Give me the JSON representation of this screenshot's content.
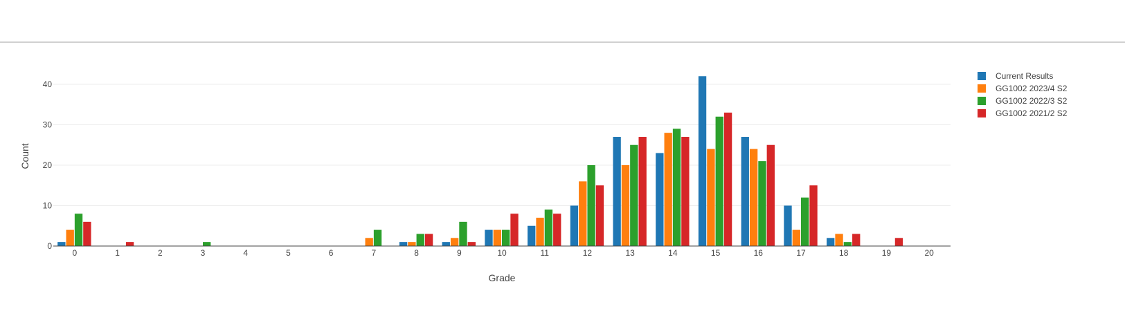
{
  "chart_data": {
    "type": "bar",
    "title": "",
    "xlabel": "Grade",
    "ylabel": "Count",
    "ylim": [
      0,
      47
    ],
    "yticks": [
      0,
      10,
      20,
      30,
      40
    ],
    "grid": true,
    "legend_position": "top-right",
    "categories": [
      "0",
      "1",
      "2",
      "3",
      "4",
      "5",
      "6",
      "7",
      "8",
      "9",
      "10",
      "11",
      "12",
      "13",
      "14",
      "15",
      "16",
      "17",
      "18",
      "19",
      "20"
    ],
    "series": [
      {
        "name": "Current Results",
        "color": "#1f77b4",
        "values": [
          1,
          0,
          0,
          0,
          0,
          0,
          0,
          0,
          1,
          1,
          4,
          5,
          10,
          27,
          23,
          42,
          27,
          10,
          2,
          0,
          0
        ]
      },
      {
        "name": "GG1002 2023/4 S2",
        "color": "#ff7f0e",
        "values": [
          4,
          0,
          0,
          0,
          0,
          0,
          0,
          2,
          1,
          2,
          4,
          7,
          16,
          20,
          28,
          24,
          24,
          4,
          3,
          0,
          0
        ]
      },
      {
        "name": "GG1002 2022/3 S2",
        "color": "#2ca02c",
        "values": [
          8,
          0,
          0,
          1,
          0,
          0,
          0,
          4,
          3,
          6,
          4,
          9,
          20,
          25,
          29,
          32,
          21,
          12,
          1,
          0,
          0
        ]
      },
      {
        "name": "GG1002 2021/2 S2",
        "color": "#d62728",
        "values": [
          6,
          1,
          0,
          0,
          0,
          0,
          0,
          0,
          3,
          1,
          8,
          8,
          15,
          27,
          27,
          33,
          25,
          15,
          3,
          2,
          0
        ]
      }
    ]
  }
}
